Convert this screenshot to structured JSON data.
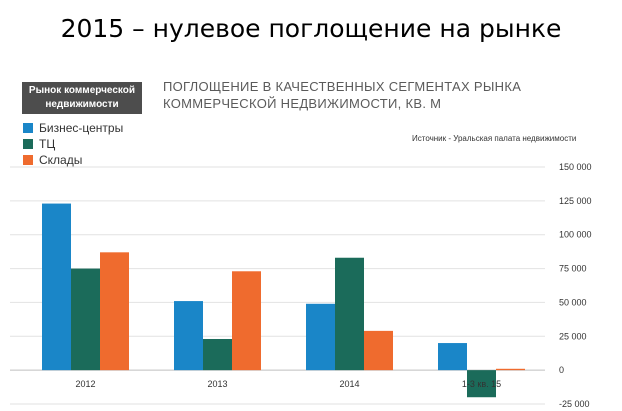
{
  "slide_title": "2015 – нулевое поглощение на рынке",
  "badge": {
    "line1": "Рынок коммерческой",
    "line2": "недвижимости"
  },
  "source": "Источник - Уральская палата недвижимости",
  "colors": {
    "Бизнес-центры": "#1a86c8",
    "ТЦ": "#1b6b5a",
    "Склады": "#ef6b2e"
  },
  "chart_data": {
    "type": "bar",
    "title_line1": "ПОГЛОЩЕНИЕ В КАЧЕСТВЕННЫХ СЕГМЕНТАХ РЫНКА",
    "title_line2": "КОММЕРЧЕСКОЙ НЕДВИЖИМОСТИ, КВ. М",
    "categories": [
      "2012",
      "2013",
      "2014",
      "1-3 кв. 15"
    ],
    "series": [
      {
        "name": "Бизнес-центры",
        "values": [
          123000,
          51000,
          49000,
          20000
        ]
      },
      {
        "name": "ТЦ",
        "values": [
          75000,
          23000,
          83000,
          -20000
        ]
      },
      {
        "name": "Склады",
        "values": [
          87000,
          73000,
          29000,
          1000
        ]
      }
    ],
    "yticks": [
      "150 000",
      "125 000",
      "100 000",
      "75 000",
      "50 000",
      "25 000",
      "0",
      "-25 000"
    ],
    "ylim": [
      -25000,
      150000
    ],
    "grid": true,
    "legend_position": "top-left"
  }
}
